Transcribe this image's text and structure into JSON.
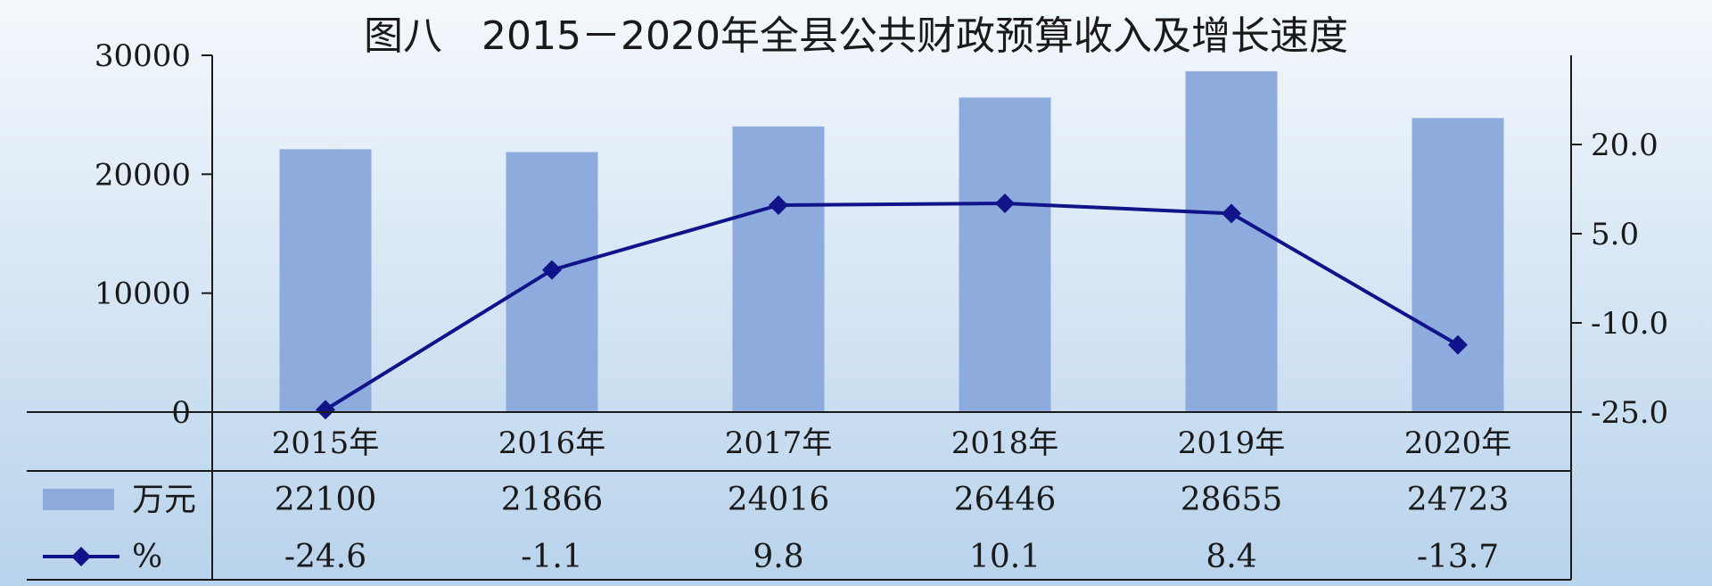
{
  "chart_data": {
    "type": "bar",
    "title": "图八　2015－2020年全县公共财政预算收入及增长速度",
    "categories": [
      "2015年",
      "2016年",
      "2017年",
      "2018年",
      "2019年",
      "2020年"
    ],
    "series": [
      {
        "name": "万元",
        "type": "bar",
        "axis": "left",
        "color": "#8eabdd",
        "values": [
          22100,
          21866,
          24016,
          26446,
          28655,
          24723
        ],
        "labels": [
          "22100",
          "21866",
          "24016",
          "26446",
          "28655",
          "24723"
        ]
      },
      {
        "name": "%",
        "type": "line",
        "axis": "right",
        "color": "#10138a",
        "marker": "diamond",
        "values": [
          -24.6,
          -1.1,
          9.8,
          10.1,
          8.4,
          -13.7
        ],
        "labels": [
          "-24.6",
          "-1.1",
          "9.8",
          "10.1",
          "8.4",
          "-13.7"
        ]
      }
    ],
    "y_left": {
      "ylim": [
        0,
        30000
      ],
      "ticks": [
        "0",
        "10000",
        "20000",
        "30000"
      ]
    },
    "y_right": {
      "ylim": [
        -25,
        35
      ],
      "ticks": [
        "-25.0",
        "-10.0",
        "5.0",
        "20.0"
      ],
      "tick_values": [
        -25,
        -10,
        5,
        20
      ]
    },
    "grid": false,
    "legend": "data-table-left",
    "background": "#f4f8fc",
    "background_bottom": "#b8d3ec",
    "table_line_color": "#1a1a1a"
  }
}
